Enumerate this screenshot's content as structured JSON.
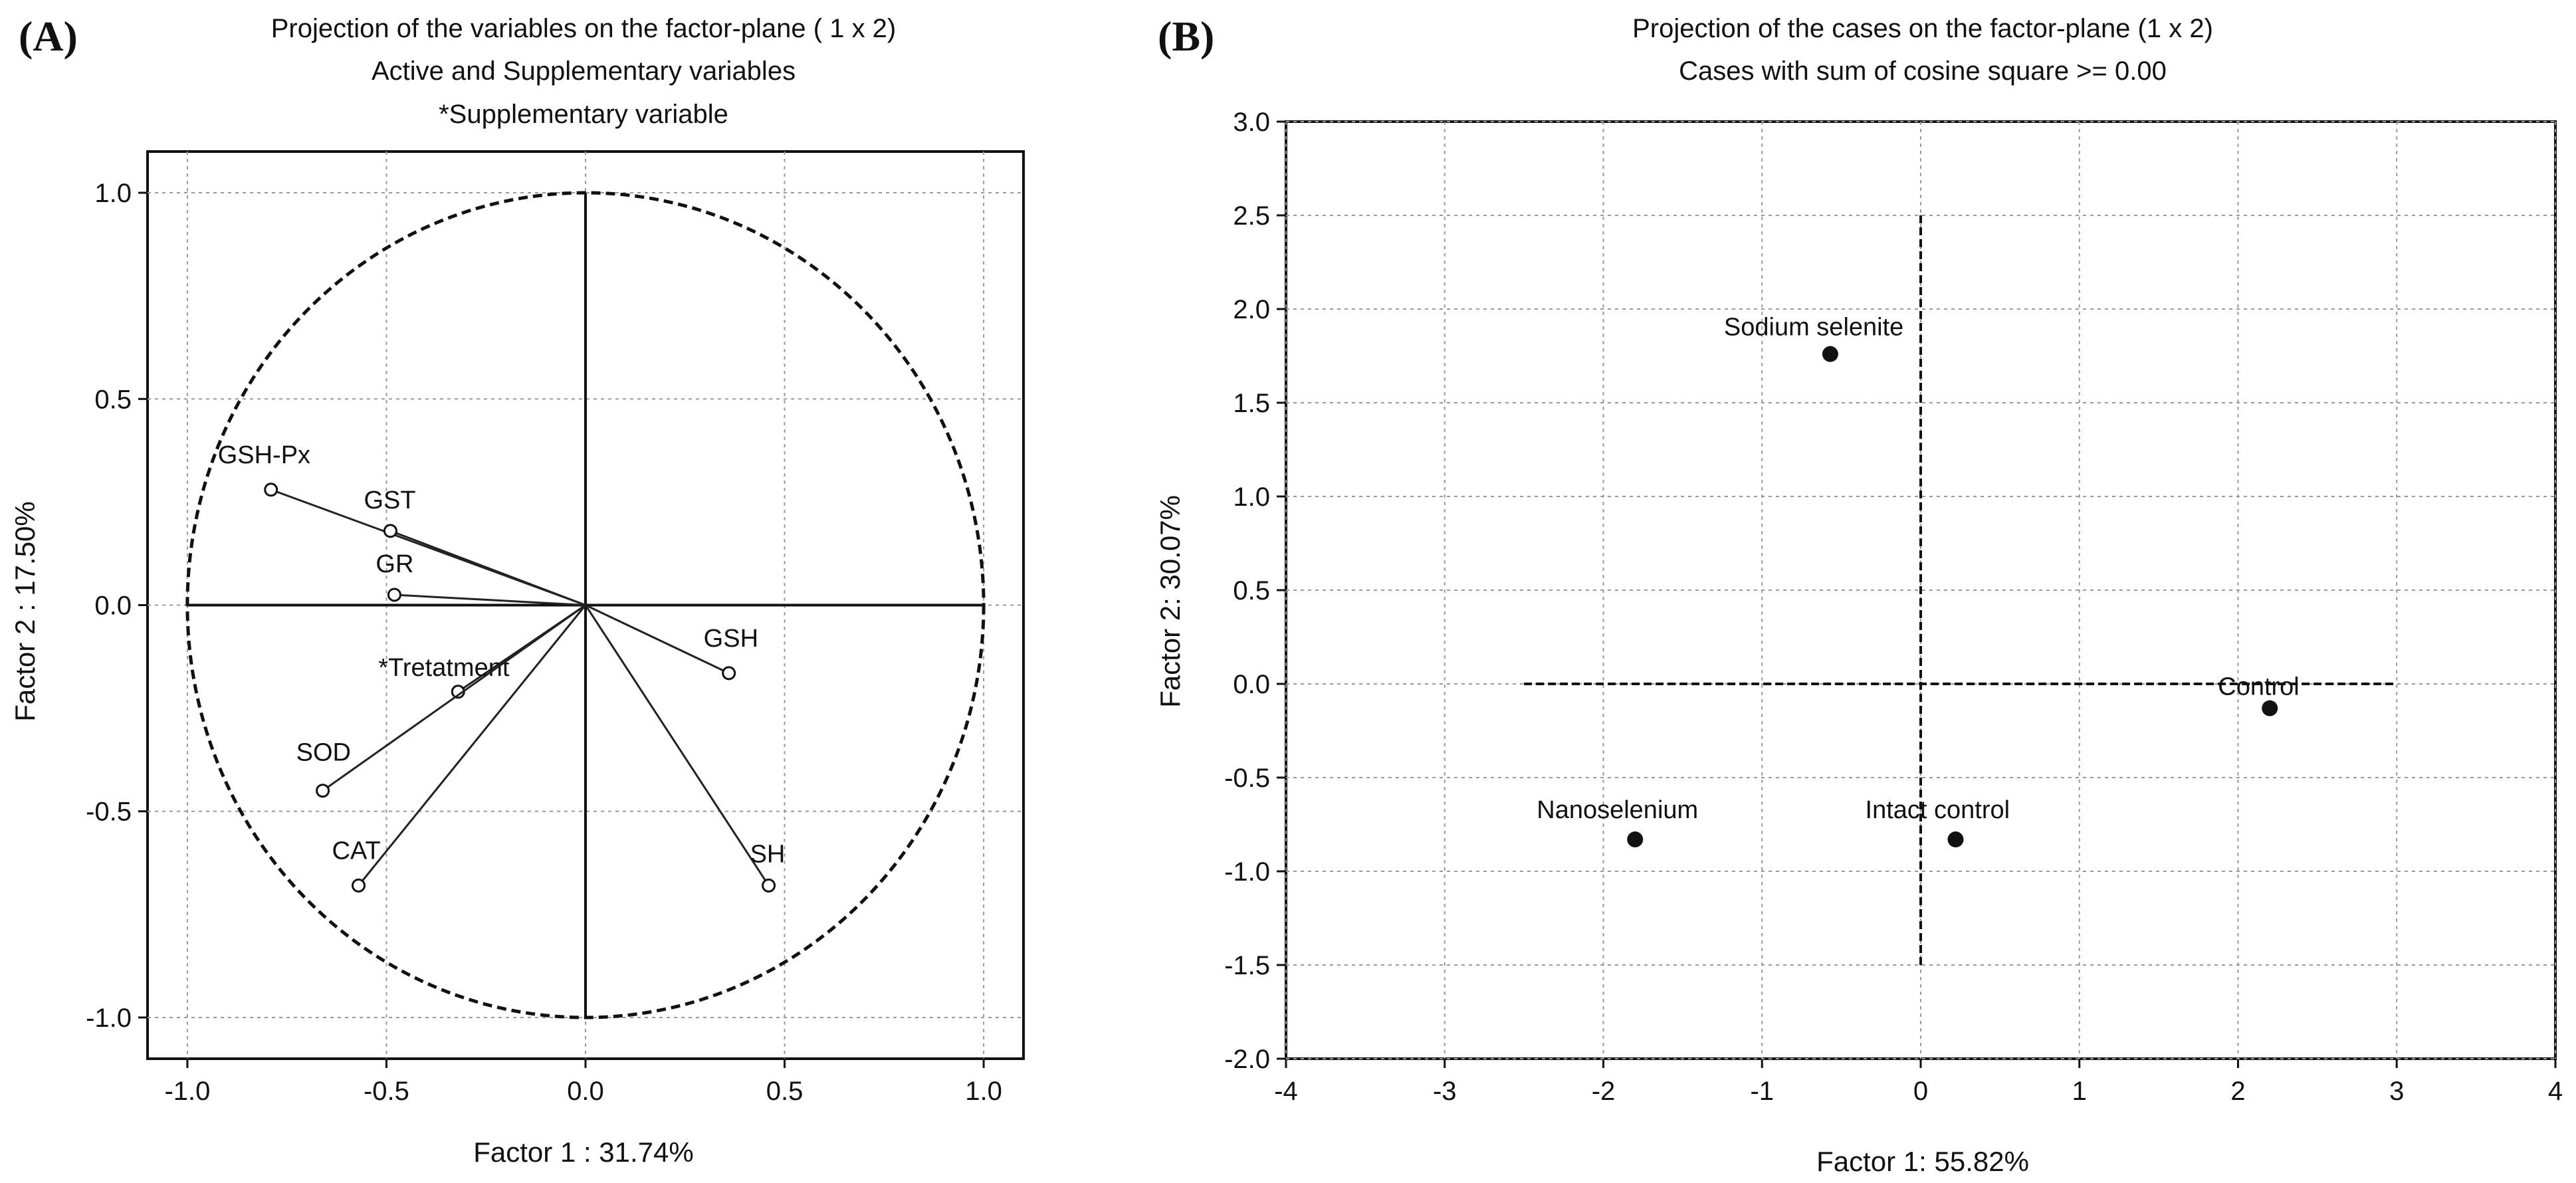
{
  "panels": [
    {
      "id": "A",
      "letter": "(A)"
    },
    {
      "id": "B",
      "letter": "(B)"
    }
  ],
  "chart_data": [
    {
      "type": "scatter",
      "subtype": "variable-projection",
      "title": "Projection of the variables on the factor-plane ( 1 x 2)",
      "subtitle": "Active and Supplementary variables",
      "note": "*Supplementary variable",
      "xlabel": "Factor 1 : 31.74%",
      "ylabel": "Factor 2 : 17.50%",
      "xlim": [
        -1.1,
        1.1
      ],
      "ylim": [
        -1.1,
        1.1
      ],
      "xticks": [
        "-1.0",
        "-0.5",
        "0.0",
        "0.5",
        "1.0"
      ],
      "yticks": [
        "1.0",
        "0.5",
        "0.0",
        "-0.5",
        "-1.0"
      ],
      "grid": true,
      "unit_circle": true,
      "points": [
        {
          "label": "GSH-Px",
          "x": -0.79,
          "y": 0.28
        },
        {
          "label": "GST",
          "x": -0.49,
          "y": 0.18
        },
        {
          "label": "GR",
          "x": -0.48,
          "y": 0.025
        },
        {
          "label": "GSH",
          "x": 0.36,
          "y": -0.165
        },
        {
          "label": "*Tretatment",
          "x": -0.32,
          "y": -0.21,
          "supplementary": true
        },
        {
          "label": "SOD",
          "x": -0.66,
          "y": -0.45
        },
        {
          "label": "CAT",
          "x": -0.57,
          "y": -0.68
        },
        {
          "label": "SH",
          "x": 0.46,
          "y": -0.68
        }
      ]
    },
    {
      "type": "scatter",
      "subtype": "case-projection",
      "title": "Projection of the cases on the factor-plane (1 x 2)",
      "subtitle": "Cases with sum of cosine square >= 0.00",
      "xlabel": "Factor 1: 55.82%",
      "ylabel": "Factor 2: 30.07%",
      "xlim": [
        -4,
        4
      ],
      "ylim": [
        -2,
        3
      ],
      "xticks": [
        "-4",
        "-3",
        "-2",
        "-1",
        "0",
        "1",
        "2",
        "3",
        "4"
      ],
      "yticks": [
        "3.0",
        "2.5",
        "2.0",
        "1.5",
        "1.0",
        "0.5",
        "0.0",
        "-0.5",
        "-1.0",
        "-1.5",
        "-2.0"
      ],
      "grid": true,
      "points": [
        {
          "label": "Sodium selenite",
          "x": -0.57,
          "y": 1.76
        },
        {
          "label": "Control",
          "x": 2.2,
          "y": -0.13
        },
        {
          "label": "Nanoselenium",
          "x": -1.8,
          "y": -0.83
        },
        {
          "label": "Intact control",
          "x": 0.22,
          "y": -0.83
        }
      ]
    }
  ]
}
